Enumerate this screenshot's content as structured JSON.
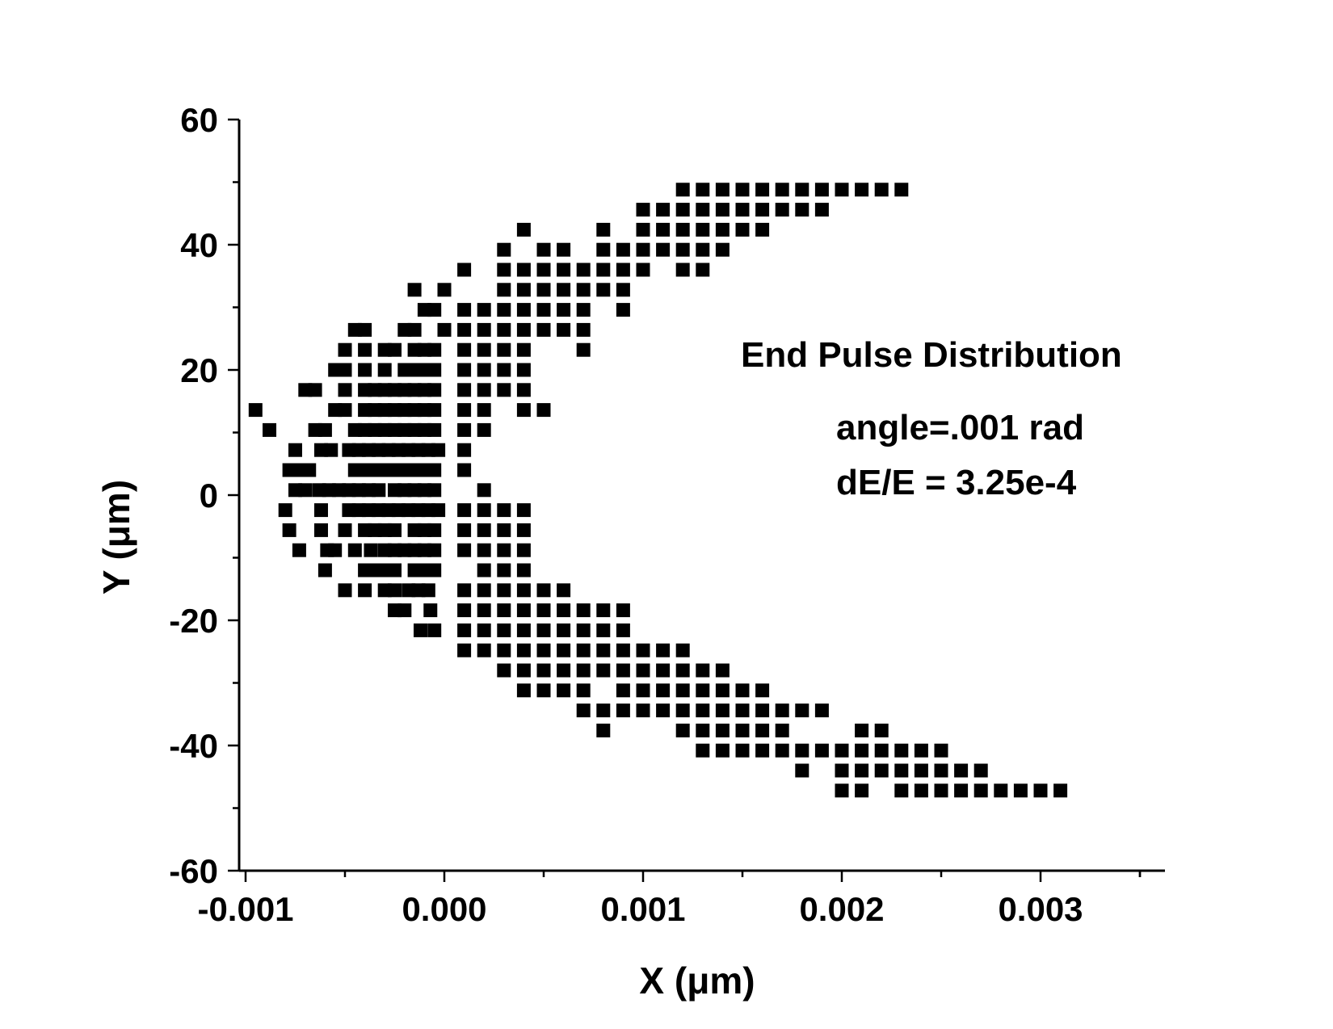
{
  "chart_data": {
    "type": "scatter",
    "title": "End Pulse Distribution",
    "annotations": [
      "angle=.001 rad",
      "dE/E = 3.25e-4"
    ],
    "xlabel": "X (μm)",
    "ylabel": "Y (μm)",
    "xlim": [
      -0.001,
      0.0036
    ],
    "ylim": [
      -60,
      60
    ],
    "xticks": [
      -0.001,
      0.0,
      0.001,
      0.002,
      0.003
    ],
    "xtick_labels": [
      "-0.001",
      "0.000",
      "0.001",
      "0.002",
      "0.003"
    ],
    "yticks": [
      -60,
      -40,
      -20,
      0,
      20,
      40,
      60
    ],
    "ytick_labels": [
      "-60",
      "-40",
      "-20",
      "0",
      "20",
      "40",
      "60"
    ],
    "grid": false,
    "legend": "none",
    "marker": "square",
    "marker_color": "#000000",
    "rows": [
      {
        "y": 48.8,
        "x": [
          0.0012,
          0.0013,
          0.0014,
          0.0015,
          0.0016,
          0.0017,
          0.0018,
          0.0019,
          0.002,
          0.0021,
          0.0022,
          0.0023
        ]
      },
      {
        "y": 45.6,
        "x": [
          0.001,
          0.0011,
          0.0012,
          0.0013,
          0.0014,
          0.0015,
          0.0016,
          0.0017,
          0.0018,
          0.0019
        ]
      },
      {
        "y": 42.4,
        "x": [
          0.0004,
          0.0008,
          0.001,
          0.0011,
          0.0012,
          0.0013,
          0.0014,
          0.0015,
          0.0016
        ]
      },
      {
        "y": 39.2,
        "x": [
          0.0003,
          0.0005,
          0.0006,
          0.0008,
          0.0009,
          0.001,
          0.0011,
          0.0012,
          0.0013,
          0.0014
        ]
      },
      {
        "y": 36.0,
        "x": [
          0.0001,
          0.0003,
          0.0004,
          0.0005,
          0.0006,
          0.0007,
          0.0008,
          0.0009,
          0.001,
          0.0012,
          0.0013
        ]
      },
      {
        "y": 32.8,
        "x": [
          -0.00015,
          -0.0,
          0.0003,
          0.0004,
          0.0005,
          0.0006,
          0.0007,
          0.0008,
          0.0009
        ]
      },
      {
        "y": 29.6,
        "x": [
          -0.0001,
          -5e-05,
          0.0001,
          0.0002,
          0.0003,
          0.0004,
          0.0005,
          0.0006,
          0.0007,
          0.0009
        ]
      },
      {
        "y": 26.4,
        "x": [
          -0.00045,
          -0.0004,
          -0.0002,
          -0.00015,
          -0.0,
          0.0001,
          0.0002,
          0.0003,
          0.0004,
          0.0005,
          0.0006,
          0.0007
        ]
      },
      {
        "y": 23.2,
        "x": [
          -0.0005,
          -0.0004,
          -0.0003,
          -0.00025,
          -0.00015,
          -0.0001,
          -5e-05,
          0.0001,
          0.0002,
          0.0003,
          0.0004,
          0.0007
        ]
      },
      {
        "y": 20.0,
        "x": [
          -0.00055,
          -0.0005,
          -0.0004,
          -0.0003,
          -0.0002,
          -0.00015,
          -0.0001,
          -5e-05,
          0.0001,
          0.0002,
          0.0003,
          0.0004
        ]
      },
      {
        "y": 16.8,
        "x": [
          -0.0007,
          -0.00065,
          -0.0005,
          -0.0004,
          -0.00035,
          -0.0003,
          -0.00025,
          -0.0002,
          -0.00015,
          -0.0001,
          -5e-05,
          0.0001,
          0.0002,
          0.0003,
          0.0004
        ]
      },
      {
        "y": 13.6,
        "x": [
          -0.00095,
          -0.00055,
          -0.0005,
          -0.0004,
          -0.00035,
          -0.0003,
          -0.00025,
          -0.0002,
          -0.00015,
          -0.0001,
          -5e-05,
          0.0001,
          0.0002,
          0.0004,
          0.0005
        ]
      },
      {
        "y": 10.4,
        "x": [
          -0.00088,
          -0.00065,
          -0.0006,
          -0.00045,
          -0.0004,
          -0.00035,
          -0.0003,
          -0.00025,
          -0.0002,
          -0.00015,
          -0.0001,
          -5e-05,
          0.0001,
          0.0002
        ]
      },
      {
        "y": 7.2,
        "x": [
          -0.00075,
          -0.00062,
          -0.00057,
          -0.00048,
          -0.00043,
          -0.00038,
          -0.00033,
          -0.00028,
          -0.00023,
          -0.00018,
          -0.00013,
          -8e-05,
          -3e-05,
          0.0001
        ]
      },
      {
        "y": 4.0,
        "x": [
          -0.00078,
          -0.00073,
          -0.00068,
          -0.00045,
          -0.0004,
          -0.00035,
          -0.0003,
          -0.00025,
          -0.0002,
          -0.00015,
          -0.0001,
          -5e-05,
          0.0001
        ]
      },
      {
        "y": 0.8,
        "x": [
          -0.00075,
          -0.0007,
          -0.00063,
          -0.00058,
          -0.00053,
          -0.00048,
          -0.00043,
          -0.00038,
          -0.00033,
          -0.00025,
          -0.0002,
          -0.00015,
          -0.0001,
          -5e-05,
          0.0002
        ]
      },
      {
        "y": -2.4,
        "x": [
          -0.0008,
          -0.00062,
          -0.00048,
          -0.00043,
          -0.00038,
          -0.00033,
          -0.00028,
          -0.00023,
          -0.00018,
          -0.00013,
          -8e-05,
          -3e-05,
          0.0001,
          0.0002,
          0.0003,
          0.0004
        ]
      },
      {
        "y": -5.6,
        "x": [
          -0.00078,
          -0.00062,
          -0.0005,
          -0.0004,
          -0.00035,
          -0.0003,
          -0.00025,
          -0.00015,
          -0.0001,
          -5e-05,
          0.0001,
          0.0002,
          0.0003,
          0.0004
        ]
      },
      {
        "y": -8.8,
        "x": [
          -0.00073,
          -0.00059,
          -0.00055,
          -0.00045,
          -0.00037,
          -0.0003,
          -0.00025,
          -0.0002,
          -0.00015,
          -0.0001,
          -5e-05,
          0.0001,
          0.0002,
          0.0003,
          0.0004
        ]
      },
      {
        "y": -12.0,
        "x": [
          -0.0006,
          -0.0004,
          -0.00035,
          -0.0003,
          -0.00025,
          -0.00015,
          -0.0001,
          -5e-05,
          0.0002,
          0.0003,
          0.0004
        ]
      },
      {
        "y": -15.2,
        "x": [
          -0.0005,
          -0.0004,
          -0.0003,
          -0.00025,
          -0.00018,
          -0.00013,
          -8e-05,
          0.0001,
          0.0002,
          0.0003,
          0.0004,
          0.0005,
          0.0006
        ]
      },
      {
        "y": -18.4,
        "x": [
          -0.00025,
          -0.0002,
          -7e-05,
          0.0001,
          0.0002,
          0.0003,
          0.0004,
          0.0005,
          0.0006,
          0.0007,
          0.0008,
          0.0009
        ]
      },
      {
        "y": -21.6,
        "x": [
          -0.00012,
          -5e-05,
          0.0001,
          0.0002,
          0.0003,
          0.0004,
          0.0005,
          0.0006,
          0.0007,
          0.0008,
          0.0009
        ]
      },
      {
        "y": -24.8,
        "x": [
          0.0001,
          0.0002,
          0.0003,
          0.0004,
          0.0005,
          0.0006,
          0.0007,
          0.0008,
          0.0009,
          0.001,
          0.0011,
          0.0012
        ]
      },
      {
        "y": -28.0,
        "x": [
          0.0003,
          0.0004,
          0.0005,
          0.0006,
          0.0007,
          0.0008,
          0.0009,
          0.001,
          0.0011,
          0.0012,
          0.0013,
          0.0014
        ]
      },
      {
        "y": -31.2,
        "x": [
          0.0004,
          0.0005,
          0.0006,
          0.0007,
          0.0009,
          0.001,
          0.0011,
          0.0012,
          0.0013,
          0.0014,
          0.0015,
          0.0016
        ]
      },
      {
        "y": -34.4,
        "x": [
          0.0007,
          0.0008,
          0.0009,
          0.001,
          0.0011,
          0.0012,
          0.0013,
          0.0014,
          0.0015,
          0.0016,
          0.0017,
          0.0018,
          0.0019
        ]
      },
      {
        "y": -37.6,
        "x": [
          0.0008,
          0.0012,
          0.0013,
          0.0014,
          0.0015,
          0.0016,
          0.0017,
          0.0021,
          0.0022
        ]
      },
      {
        "y": -40.8,
        "x": [
          0.0013,
          0.0014,
          0.0015,
          0.0016,
          0.0017,
          0.0018,
          0.0019,
          0.002,
          0.0021,
          0.0022,
          0.0023,
          0.0024,
          0.0025
        ]
      },
      {
        "y": -44.0,
        "x": [
          0.0018,
          0.002,
          0.0021,
          0.0022,
          0.0023,
          0.0024,
          0.0025,
          0.0026,
          0.0027
        ]
      },
      {
        "y": -47.2,
        "x": [
          0.002,
          0.0021,
          0.0023,
          0.0024,
          0.0025,
          0.0026,
          0.0027,
          0.0028,
          0.0029,
          0.003,
          0.0031
        ]
      }
    ]
  }
}
